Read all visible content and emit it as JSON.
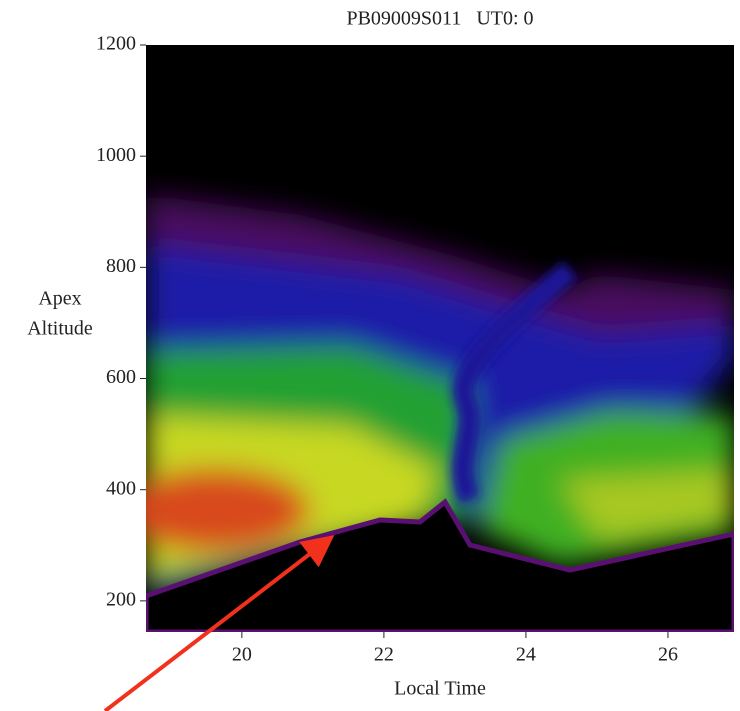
{
  "chart_data": {
    "type": "heatmap",
    "title": "PB09009S011   UT0: 0",
    "xlabel": "Local Time",
    "ylabel": [
      "Apex",
      "Altitude"
    ],
    "xlim": [
      18.65,
      26.93
    ],
    "xticks": [
      20,
      22,
      24,
      26
    ],
    "ylim": [
      144,
      1200
    ],
    "yticks": [
      200,
      400,
      600,
      800,
      1000,
      1200
    ]
  }
}
